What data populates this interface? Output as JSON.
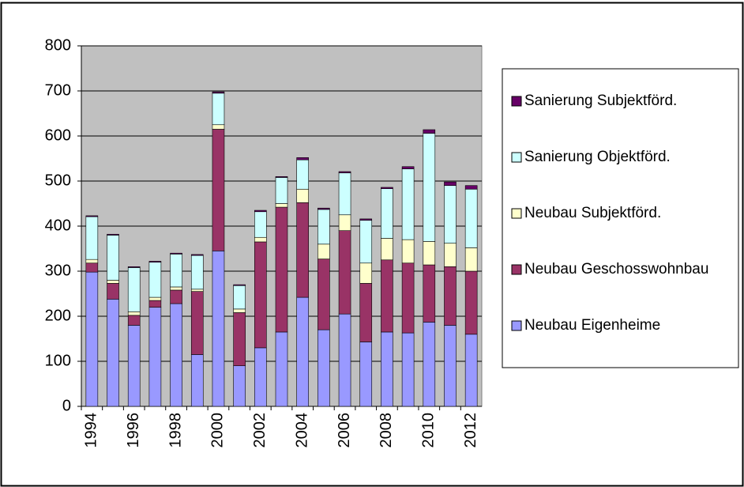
{
  "chart_data": {
    "type": "stacked_bar",
    "categories": [
      "1994",
      null,
      "1996",
      null,
      "1998",
      null,
      "2000",
      null,
      "2002",
      null,
      "2004",
      null,
      "2006",
      null,
      "2008",
      null,
      "2010",
      null,
      "2012"
    ],
    "series": [
      {
        "name": "Neubau Eigenheime",
        "color": "#9999ff",
        "values": [
          298,
          238,
          180,
          220,
          228,
          115,
          345,
          90,
          130,
          165,
          242,
          170,
          205,
          143,
          165,
          163,
          187,
          180,
          160
        ]
      },
      {
        "name": "Neubau Geschosswohnbau",
        "color": "#993366",
        "values": [
          20,
          35,
          22,
          15,
          30,
          140,
          270,
          118,
          235,
          277,
          210,
          157,
          185,
          130,
          160,
          155,
          127,
          130,
          140
        ]
      },
      {
        "name": "Neubau Subjektförd.",
        "color": "#ffffcc",
        "values": [
          8,
          7,
          8,
          7,
          7,
          5,
          10,
          8,
          10,
          8,
          30,
          33,
          35,
          45,
          48,
          52,
          52,
          52,
          52
        ]
      },
      {
        "name": "Sanierung Objektförd.",
        "color": "#ccffff",
        "values": [
          95,
          100,
          98,
          78,
          73,
          75,
          70,
          52,
          57,
          58,
          65,
          77,
          93,
          95,
          110,
          157,
          240,
          128,
          130
        ]
      },
      {
        "name": "Sanierung Subjektförd.",
        "color": "#660066",
        "values": [
          2,
          2,
          2,
          2,
          2,
          2,
          3,
          2,
          3,
          2,
          5,
          3,
          3,
          3,
          3,
          5,
          8,
          8,
          8
        ]
      }
    ],
    "ylim": [
      0,
      800
    ],
    "yticks": [
      0,
      100,
      200,
      300,
      400,
      500,
      600,
      700,
      800
    ],
    "grid": true,
    "legend": "right"
  }
}
